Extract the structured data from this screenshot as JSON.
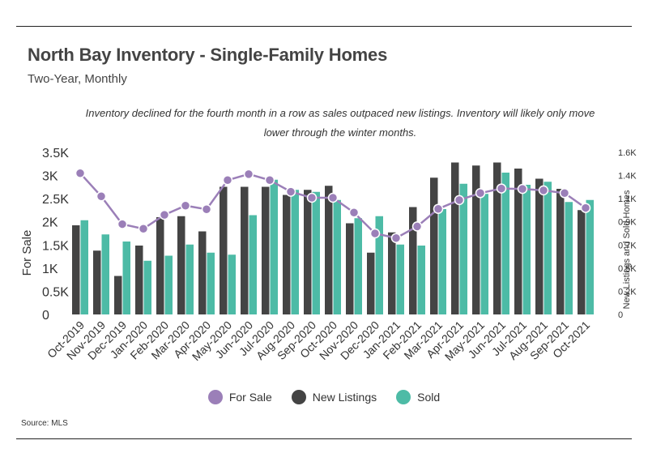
{
  "title": "North Bay Inventory - Single-Family Homes",
  "subtitle": "Two-Year, Monthly",
  "note": "Inventory declined for the fourth month in a row as sales outpaced new listings. Inventory will likely only move lower through the winter months.",
  "source": "Source:  MLS",
  "colors": {
    "for_sale": "#9b7fb8",
    "new_listings": "#444444",
    "sold": "#4dbba6"
  },
  "legend": [
    "For Sale",
    "New Listings",
    "Sold"
  ],
  "chart_data": {
    "type": "bar",
    "categories": [
      "Oct-2019",
      "Nov-2019",
      "Dec-2019",
      "Jan-2020",
      "Feb-2020",
      "Mar-2020",
      "Apr-2020",
      "May-2020",
      "Jun-2020",
      "Jul-2020",
      "Aug-2020",
      "Sep-2020",
      "Oct-2020",
      "Nov-2020",
      "Dec-2020",
      "Jan-2021",
      "Feb-2021",
      "Mar-2021",
      "Apr-2021",
      "May-2021",
      "Jun-2021",
      "Jul-2021",
      "Aug-2021",
      "Sep-2021",
      "Oct-2021"
    ],
    "series": [
      {
        "name": "New Listings",
        "axis": "right",
        "type": "bar",
        "values": [
          880,
          630,
          380,
          680,
          960,
          970,
          820,
          1260,
          1260,
          1260,
          1180,
          1230,
          1270,
          900,
          610,
          810,
          1060,
          1350,
          1500,
          1470,
          1500,
          1440,
          1340,
          1240,
          1030
        ]
      },
      {
        "name": "Sold",
        "axis": "right",
        "type": "bar",
        "values": [
          930,
          790,
          720,
          530,
          580,
          690,
          610,
          590,
          980,
          1330,
          1230,
          1210,
          1130,
          950,
          970,
          690,
          680,
          1040,
          1290,
          1190,
          1400,
          1280,
          1310,
          1110,
          1130
        ]
      },
      {
        "name": "For Sale",
        "axis": "left",
        "type": "line",
        "values": [
          3050,
          2550,
          1950,
          1850,
          2150,
          2350,
          2270,
          2900,
          3030,
          2900,
          2650,
          2520,
          2520,
          2200,
          1750,
          1650,
          1900,
          2280,
          2470,
          2620,
          2720,
          2710,
          2680,
          2620,
          2300
        ]
      }
    ],
    "ylabel": "For Sale",
    "ylim": [
      0,
      3500
    ],
    "yticks": [
      "0",
      "0.5K",
      "1K",
      "1.5K",
      "2K",
      "2.5K",
      "3K",
      "3.5K"
    ],
    "y2label": "New Listings and Sold Homes",
    "y2lim": [
      0,
      1600
    ],
    "y2ticks": [
      "0",
      "0.2K",
      "0.5K",
      "0.7K",
      "0.9K",
      "1.1K",
      "1.4K",
      "1.6K"
    ],
    "grid": false,
    "legend_position": "bottom"
  }
}
